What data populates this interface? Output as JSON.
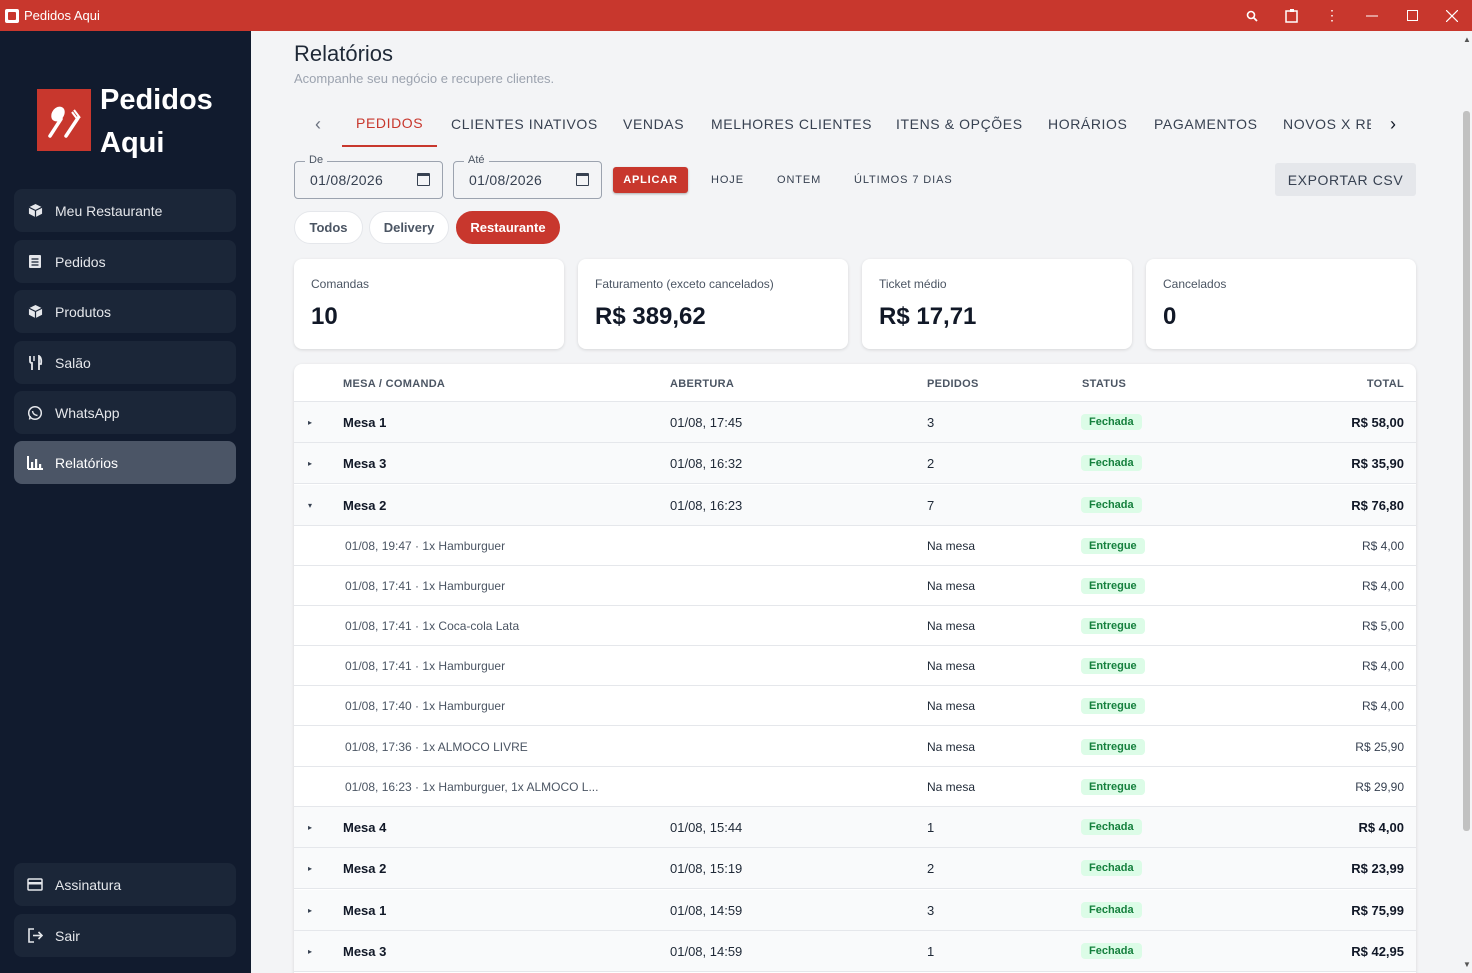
{
  "window": {
    "title": "Pedidos Aqui"
  },
  "sidebar": {
    "brand_line1": "Pedidos",
    "brand_line2": "Aqui",
    "items": [
      {
        "label": "Meu Restaurante",
        "icon": "cube-icon"
      },
      {
        "label": "Pedidos",
        "icon": "receipt-icon"
      },
      {
        "label": "Produtos",
        "icon": "cube-icon"
      },
      {
        "label": "Salão",
        "icon": "utensils-icon"
      },
      {
        "label": "WhatsApp",
        "icon": "whatsapp-icon"
      },
      {
        "label": "Relatórios",
        "icon": "bar-chart-icon",
        "active": true
      }
    ],
    "bottom": [
      {
        "label": "Assinatura",
        "icon": "credit-card-icon"
      },
      {
        "label": "Sair",
        "icon": "logout-icon"
      }
    ]
  },
  "page": {
    "title": "Relatórios",
    "subtitle": "Acompanhe seu negócio e recupere clientes."
  },
  "tabs": [
    "PEDIDOS",
    "CLIENTES INATIVOS",
    "VENDAS",
    "MELHORES CLIENTES",
    "ITENS & OPÇÕES",
    "HORÁRIOS",
    "PAGAMENTOS",
    "NOVOS X RE"
  ],
  "filters": {
    "from_label": "De",
    "from_value": "01/08/2026",
    "to_label": "Até",
    "to_value": "01/08/2026",
    "apply": "APLICAR",
    "today": "HOJE",
    "yesterday": "ONTEM",
    "last7": "ÚLTIMOS 7 DIAS",
    "export": "EXPORTAR CSV",
    "chips": [
      "Todos",
      "Delivery",
      "Restaurante"
    ],
    "active_chip": "Restaurante"
  },
  "cards": [
    {
      "label": "Comandas",
      "value": "10"
    },
    {
      "label": "Faturamento (exceto cancelados)",
      "value": "R$ 389,62"
    },
    {
      "label": "Ticket médio",
      "value": "R$ 17,71"
    },
    {
      "label": "Cancelados",
      "value": "0"
    }
  ],
  "table": {
    "headers": {
      "mesa": "MESA / COMANDA",
      "abertura": "ABERTURA",
      "pedidos": "PEDIDOS",
      "status": "STATUS",
      "total": "TOTAL"
    },
    "groups": [
      {
        "toggle": "▸",
        "mesa": "Mesa 1",
        "abertura": "01/08, 17:45",
        "pedidos": "3",
        "status": "Fechada",
        "total": "R$ 58,00"
      },
      {
        "toggle": "▸",
        "mesa": "Mesa 3",
        "abertura": "01/08, 16:32",
        "pedidos": "2",
        "status": "Fechada",
        "total": "R$ 35,90"
      },
      {
        "toggle": "▾",
        "mesa": "Mesa 2",
        "abertura": "01/08, 16:23",
        "pedidos": "7",
        "status": "Fechada",
        "total": "R$ 76,80"
      },
      {
        "toggle": "▸",
        "mesa": "Mesa 4",
        "abertura": "01/08, 15:44",
        "pedidos": "1",
        "status": "Fechada",
        "total": "R$ 4,00"
      },
      {
        "toggle": "▸",
        "mesa": "Mesa 2",
        "abertura": "01/08, 15:19",
        "pedidos": "2",
        "status": "Fechada",
        "total": "R$ 23,99"
      },
      {
        "toggle": "▸",
        "mesa": "Mesa 1",
        "abertura": "01/08, 14:59",
        "pedidos": "3",
        "status": "Fechada",
        "total": "R$ 75,99"
      },
      {
        "toggle": "▸",
        "mesa": "Mesa 3",
        "abertura": "01/08, 14:59",
        "pedidos": "1",
        "status": "Fechada",
        "total": "R$ 42,95"
      }
    ],
    "sub_rows": [
      {
        "desc": "01/08, 19:47 · 1x Hamburguer",
        "pedidos": "Na mesa",
        "status": "Entregue",
        "total": "R$ 4,00"
      },
      {
        "desc": "01/08, 17:41 · 1x Hamburguer",
        "pedidos": "Na mesa",
        "status": "Entregue",
        "total": "R$ 4,00"
      },
      {
        "desc": "01/08, 17:41 · 1x Coca-cola Lata",
        "pedidos": "Na mesa",
        "status": "Entregue",
        "total": "R$ 5,00"
      },
      {
        "desc": "01/08, 17:41 · 1x Hamburguer",
        "pedidos": "Na mesa",
        "status": "Entregue",
        "total": "R$ 4,00"
      },
      {
        "desc": "01/08, 17:40 · 1x Hamburguer",
        "pedidos": "Na mesa",
        "status": "Entregue",
        "total": "R$ 4,00"
      },
      {
        "desc": "01/08, 17:36 · 1x ALMOCO LIVRE",
        "pedidos": "Na mesa",
        "status": "Entregue",
        "total": "R$ 25,90"
      },
      {
        "desc": "01/08, 16:23 · 1x Hamburguer, 1x ALMOCO L...",
        "pedidos": "Na mesa",
        "status": "Entregue",
        "total": "R$ 29,90"
      }
    ]
  },
  "colors": {
    "brand": "#c8372d",
    "sidebar_bg": "#111b2e",
    "badge_green": "#15803d"
  }
}
